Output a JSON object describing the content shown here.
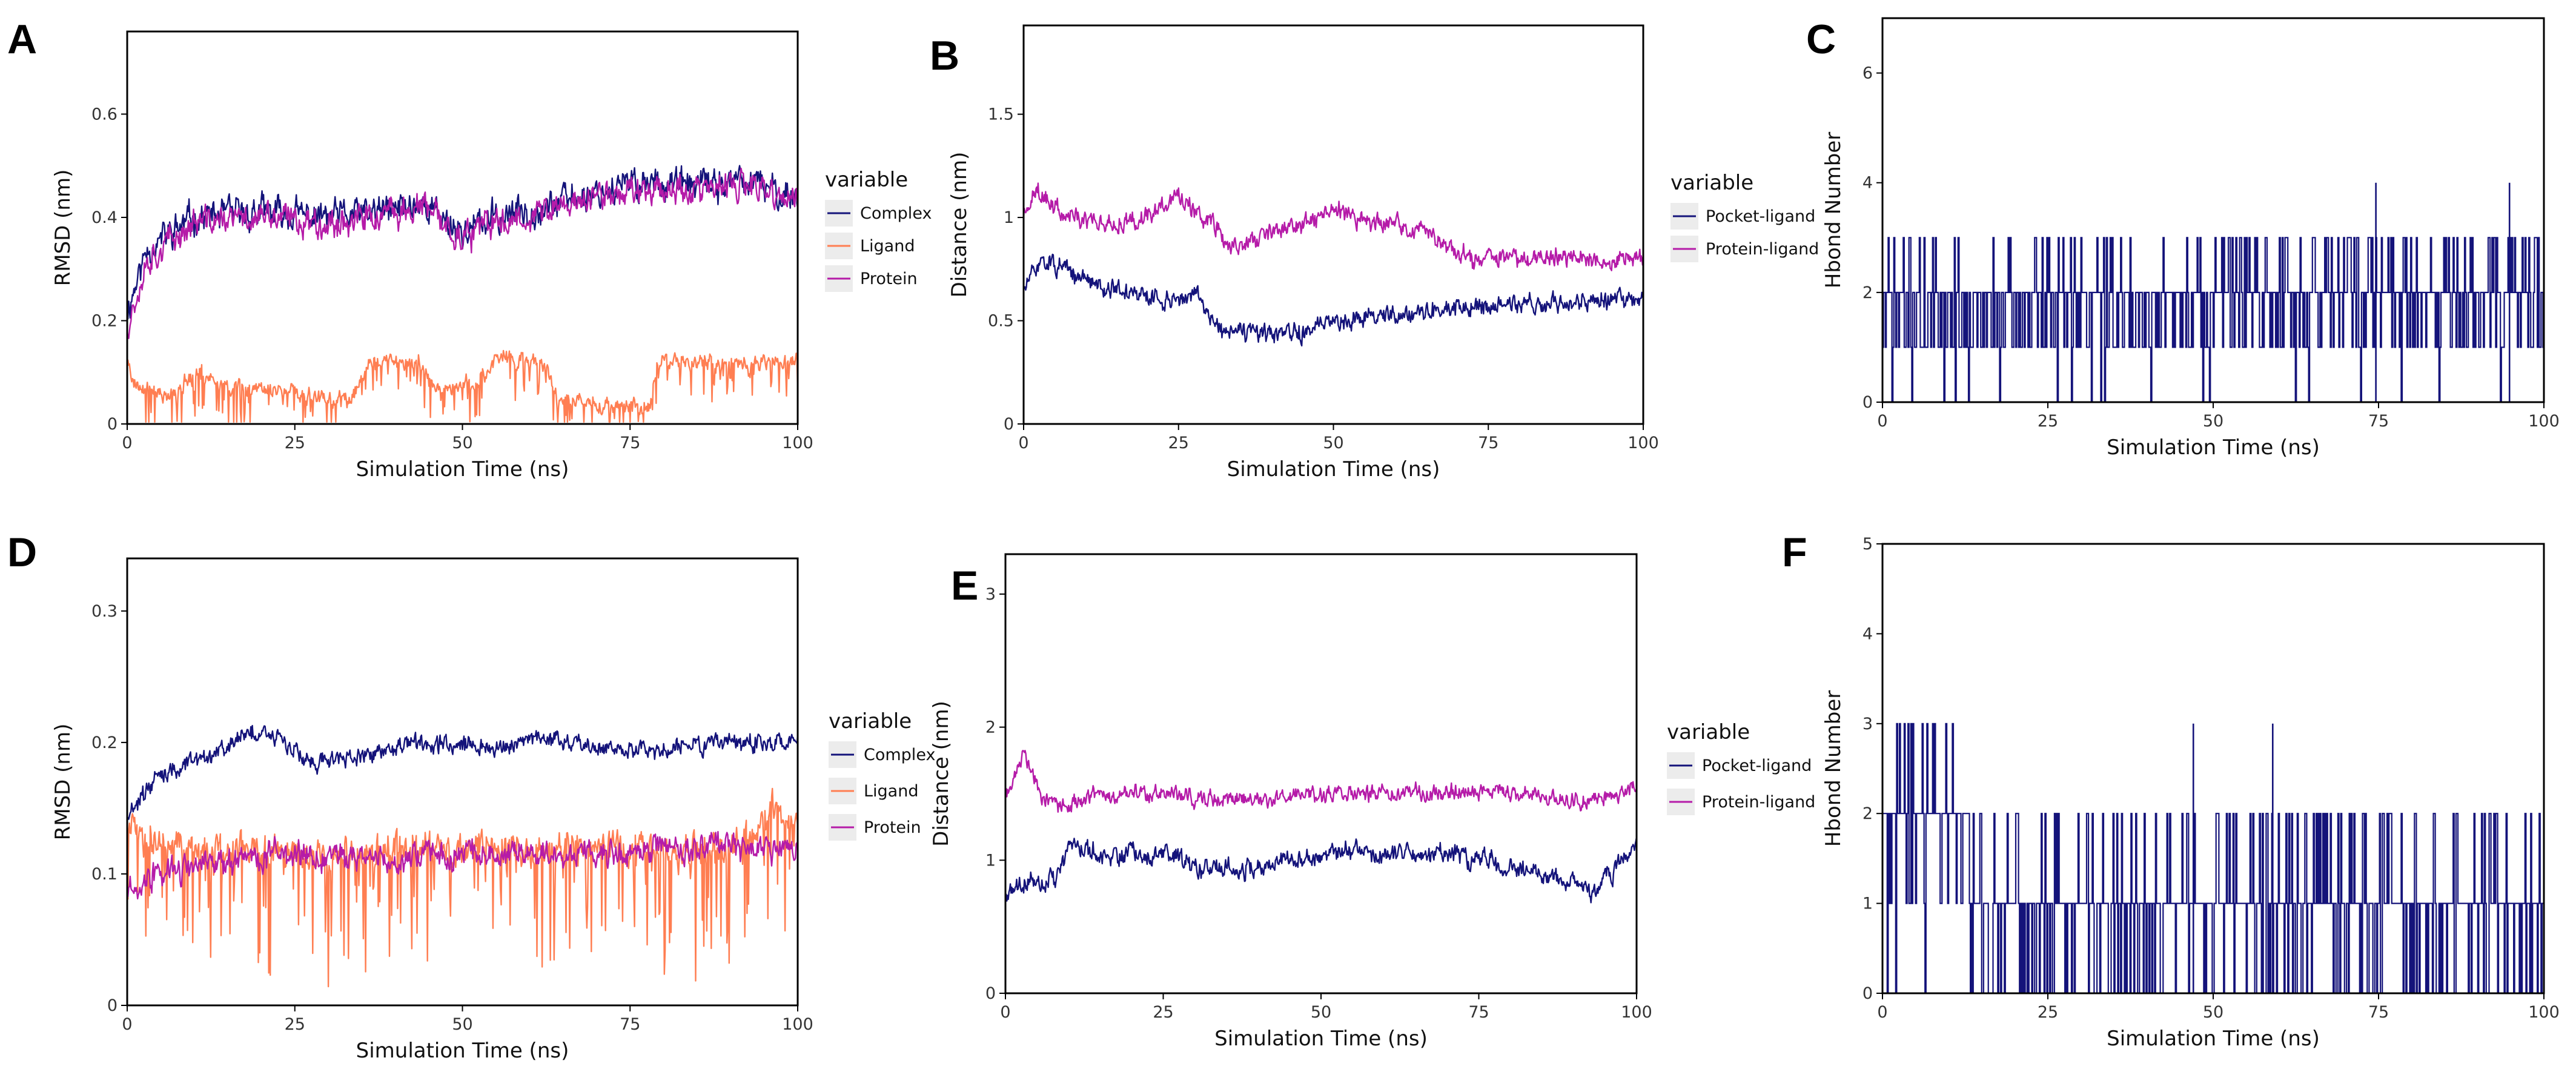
{
  "colors": {
    "complex": "#14137a",
    "ligand": "#ff7e52",
    "protein": "#b51ba8",
    "pocket": "#14137a",
    "protein_ligand": "#b51ba8",
    "hbond": "#14137a",
    "legend_key_bg": "#ececec"
  },
  "chart_data": [
    {
      "id": "A",
      "type": "line",
      "panel_label": "A",
      "xlabel": "Simulation Time (ns)",
      "ylabel": "RMSD (nm)",
      "xlim": [
        0,
        100
      ],
      "ylim": [
        0,
        0.76
      ],
      "xticks": [
        0,
        25,
        50,
        75,
        100
      ],
      "xtick_labels": [
        "0",
        "25",
        "50",
        "75",
        "100"
      ],
      "yticks": [
        0,
        0.2,
        0.4,
        0.6
      ],
      "ytick_labels": [
        "0",
        "0.2",
        "0.4",
        "0.6"
      ],
      "legend_title": "variable",
      "series": [
        {
          "name": "Complex",
          "color_key": "complex",
          "noise": 0.03,
          "spikes": 0,
          "seed": 11,
          "points": [
            [
              0,
              0.22
            ],
            [
              3,
              0.34
            ],
            [
              10,
              0.4
            ],
            [
              20,
              0.41
            ],
            [
              30,
              0.4
            ],
            [
              38,
              0.41
            ],
            [
              44,
              0.43
            ],
            [
              50,
              0.37
            ],
            [
              55,
              0.4
            ],
            [
              62,
              0.42
            ],
            [
              70,
              0.45
            ],
            [
              78,
              0.47
            ],
            [
              85,
              0.46
            ],
            [
              92,
              0.47
            ],
            [
              100,
              0.44
            ]
          ]
        },
        {
          "name": "Ligand",
          "color_key": "ligand",
          "noise": 0.015,
          "spikes": 0.08,
          "seed": 23,
          "points": [
            [
              0,
              0.13
            ],
            [
              1,
              0.08
            ],
            [
              6,
              0.05
            ],
            [
              10,
              0.1
            ],
            [
              16,
              0.07
            ],
            [
              26,
              0.06
            ],
            [
              33,
              0.04
            ],
            [
              36,
              0.12
            ],
            [
              44,
              0.12
            ],
            [
              46,
              0.07
            ],
            [
              52,
              0.08
            ],
            [
              56,
              0.13
            ],
            [
              62,
              0.12
            ],
            [
              64,
              0.05
            ],
            [
              70,
              0.04
            ],
            [
              78,
              0.03
            ],
            [
              79,
              0.12
            ],
            [
              100,
              0.12
            ]
          ]
        },
        {
          "name": "Protein",
          "color_key": "protein",
          "noise": 0.028,
          "spikes": 0,
          "seed": 37,
          "points": [
            [
              0,
              0.19
            ],
            [
              3,
              0.32
            ],
            [
              10,
              0.39
            ],
            [
              20,
              0.4
            ],
            [
              30,
              0.39
            ],
            [
              38,
              0.4
            ],
            [
              44,
              0.42
            ],
            [
              50,
              0.36
            ],
            [
              55,
              0.39
            ],
            [
              62,
              0.41
            ],
            [
              70,
              0.44
            ],
            [
              78,
              0.46
            ],
            [
              85,
              0.45
            ],
            [
              92,
              0.46
            ],
            [
              100,
              0.43
            ]
          ]
        }
      ]
    },
    {
      "id": "B",
      "type": "line",
      "panel_label": "B",
      "xlabel": "Simulation Time (ns)",
      "ylabel": "Distance (nm)",
      "xlim": [
        0,
        100
      ],
      "ylim": [
        0,
        1.93
      ],
      "xticks": [
        0,
        25,
        50,
        75,
        100
      ],
      "xtick_labels": [
        "0",
        "25",
        "50",
        "75",
        "100"
      ],
      "yticks": [
        0,
        0.5,
        1,
        1.5
      ],
      "ytick_labels": [
        "0",
        "0.5",
        "1",
        "1.5"
      ],
      "legend_title": "variable",
      "series": [
        {
          "name": "Pocket-ligand",
          "color_key": "pocket",
          "noise": 0.045,
          "spikes": 0,
          "seed": 51,
          "points": [
            [
              0,
              0.65
            ],
            [
              3,
              0.8
            ],
            [
              8,
              0.72
            ],
            [
              15,
              0.65
            ],
            [
              22,
              0.6
            ],
            [
              28,
              0.62
            ],
            [
              32,
              0.45
            ],
            [
              40,
              0.43
            ],
            [
              45,
              0.44
            ],
            [
              50,
              0.5
            ],
            [
              55,
              0.52
            ],
            [
              62,
              0.54
            ],
            [
              70,
              0.56
            ],
            [
              78,
              0.58
            ],
            [
              85,
              0.58
            ],
            [
              92,
              0.6
            ],
            [
              100,
              0.6
            ]
          ]
        },
        {
          "name": "Protein-ligand",
          "color_key": "protein_ligand",
          "noise": 0.045,
          "spikes": 0,
          "seed": 63,
          "points": [
            [
              0,
              1.0
            ],
            [
              2,
              1.15
            ],
            [
              6,
              1.02
            ],
            [
              14,
              0.97
            ],
            [
              20,
              1.02
            ],
            [
              25,
              1.1
            ],
            [
              30,
              1.0
            ],
            [
              33,
              0.85
            ],
            [
              40,
              0.92
            ],
            [
              46,
              0.97
            ],
            [
              50,
              1.05
            ],
            [
              55,
              0.98
            ],
            [
              62,
              0.96
            ],
            [
              66,
              0.9
            ],
            [
              72,
              0.8
            ],
            [
              78,
              0.8
            ],
            [
              85,
              0.82
            ],
            [
              92,
              0.8
            ],
            [
              100,
              0.8
            ]
          ]
        }
      ]
    },
    {
      "id": "C",
      "type": "step",
      "panel_label": "C",
      "xlabel": "Simulation Time (ns)",
      "ylabel": "Hbond Number",
      "xlim": [
        0,
        100
      ],
      "ylim": [
        0,
        7.0
      ],
      "xticks": [
        0,
        25,
        50,
        75,
        100
      ],
      "xtick_labels": [
        "0",
        "25",
        "50",
        "75",
        "100"
      ],
      "yticks": [
        0,
        2,
        4,
        6
      ],
      "ytick_labels": [
        "0",
        "2",
        "4",
        "6"
      ],
      "series": [
        {
          "name": "Hbond",
          "color_key": "hbond",
          "seed": 71,
          "segments": [
            {
              "from": 0,
              "to": 25,
              "p": [
                0.04,
                0.36,
                0.53,
                0.07,
                0.0
              ]
            },
            {
              "from": 25,
              "to": 50,
              "p": [
                0.03,
                0.33,
                0.52,
                0.12,
                0.0
              ]
            },
            {
              "from": 50,
              "to": 100,
              "p": [
                0.02,
                0.28,
                0.5,
                0.2,
                0.0
              ]
            }
          ],
          "extra_spikes": [
            [
              74.6,
              4
            ],
            [
              94.8,
              4
            ]
          ]
        }
      ]
    },
    {
      "id": "D",
      "type": "line",
      "panel_label": "D",
      "xlabel": "Simulation Time (ns)",
      "ylabel": "RMSD (nm)",
      "xlim": [
        0,
        100
      ],
      "ylim": [
        0,
        0.34
      ],
      "xticks": [
        0,
        25,
        50,
        75,
        100
      ],
      "xtick_labels": [
        "0",
        "25",
        "50",
        "75",
        "100"
      ],
      "yticks": [
        0,
        0.1,
        0.2,
        0.3
      ],
      "ytick_labels": [
        "0",
        "0.1",
        "0.2",
        "0.3"
      ],
      "legend_title": "variable",
      "series": [
        {
          "name": "Complex",
          "color_key": "complex",
          "noise": 0.007,
          "spikes": 0,
          "seed": 81,
          "points": [
            [
              0,
              0.145
            ],
            [
              5,
              0.175
            ],
            [
              12,
              0.19
            ],
            [
              20,
              0.21
            ],
            [
              28,
              0.185
            ],
            [
              35,
              0.19
            ],
            [
              45,
              0.2
            ],
            [
              55,
              0.195
            ],
            [
              62,
              0.205
            ],
            [
              70,
              0.195
            ],
            [
              80,
              0.195
            ],
            [
              90,
              0.2
            ],
            [
              100,
              0.2
            ]
          ]
        },
        {
          "name": "Ligand",
          "color_key": "ligand",
          "noise": 0.012,
          "spikes": 0.09,
          "seed": 93,
          "points": [
            [
              0,
              0.13
            ],
            [
              10,
              0.12
            ],
            [
              20,
              0.12
            ],
            [
              30,
              0.11
            ],
            [
              40,
              0.12
            ],
            [
              50,
              0.12
            ],
            [
              60,
              0.12
            ],
            [
              70,
              0.12
            ],
            [
              80,
              0.12
            ],
            [
              90,
              0.12
            ],
            [
              97,
              0.15
            ],
            [
              100,
              0.13
            ]
          ]
        },
        {
          "name": "Protein",
          "color_key": "protein",
          "noise": 0.01,
          "spikes": 0,
          "seed": 107,
          "points": [
            [
              0,
              0.09
            ],
            [
              5,
              0.1
            ],
            [
              15,
              0.11
            ],
            [
              25,
              0.115
            ],
            [
              35,
              0.11
            ],
            [
              45,
              0.115
            ],
            [
              55,
              0.115
            ],
            [
              65,
              0.115
            ],
            [
              75,
              0.115
            ],
            [
              85,
              0.12
            ],
            [
              95,
              0.12
            ],
            [
              100,
              0.12
            ]
          ]
        }
      ]
    },
    {
      "id": "E",
      "type": "line",
      "panel_label": "E",
      "xlabel": "Simulation Time (ns)",
      "ylabel": "Distance (nm)",
      "xlim": [
        0,
        100
      ],
      "ylim": [
        0,
        3.3
      ],
      "xticks": [
        0,
        25,
        50,
        75,
        100
      ],
      "xtick_labels": [
        "0",
        "25",
        "50",
        "75",
        "100"
      ],
      "yticks": [
        0,
        1,
        2,
        3
      ],
      "ytick_labels": [
        "0",
        "1",
        "2",
        "3"
      ],
      "legend_title": "variable",
      "series": [
        {
          "name": "Pocket-ligand",
          "color_key": "pocket",
          "noise": 0.07,
          "spikes": 0,
          "seed": 121,
          "points": [
            [
              0,
              0.75
            ],
            [
              3,
              0.85
            ],
            [
              8,
              0.85
            ],
            [
              10,
              1.1
            ],
            [
              15,
              1.05
            ],
            [
              25,
              1.05
            ],
            [
              30,
              0.95
            ],
            [
              40,
              0.95
            ],
            [
              50,
              1.05
            ],
            [
              60,
              1.05
            ],
            [
              70,
              1.05
            ],
            [
              80,
              0.95
            ],
            [
              88,
              0.85
            ],
            [
              93,
              0.75
            ],
            [
              100,
              1.1
            ]
          ]
        },
        {
          "name": "Protein-ligand",
          "color_key": "protein_ligand",
          "noise": 0.06,
          "spikes": 0,
          "seed": 133,
          "points": [
            [
              0,
              1.5
            ],
            [
              3,
              1.8
            ],
            [
              6,
              1.45
            ],
            [
              10,
              1.4
            ],
            [
              15,
              1.5
            ],
            [
              25,
              1.5
            ],
            [
              35,
              1.45
            ],
            [
              45,
              1.48
            ],
            [
              55,
              1.5
            ],
            [
              65,
              1.5
            ],
            [
              75,
              1.52
            ],
            [
              85,
              1.48
            ],
            [
              92,
              1.45
            ],
            [
              100,
              1.55
            ]
          ]
        }
      ]
    },
    {
      "id": "F",
      "type": "step",
      "panel_label": "F",
      "xlabel": "Simulation Time (ns)",
      "ylabel": "Hbond Number",
      "xlim": [
        0,
        100
      ],
      "ylim": [
        0,
        5.0
      ],
      "xticks": [
        0,
        25,
        50,
        75,
        100
      ],
      "xtick_labels": [
        "0",
        "25",
        "50",
        "75",
        "100"
      ],
      "yticks": [
        0,
        1,
        2,
        3,
        4,
        5
      ],
      "ytick_labels": [
        "0",
        "1",
        "2",
        "3",
        "4",
        "5"
      ],
      "series": [
        {
          "name": "Hbond",
          "color_key": "hbond",
          "seed": 149,
          "segments": [
            {
              "from": 0,
              "to": 13,
              "p": [
                0.05,
                0.1,
                0.72,
                0.13,
                0.0
              ]
            },
            {
              "from": 13,
              "to": 40,
              "p": [
                0.22,
                0.63,
                0.15,
                0.0,
                0.0
              ]
            },
            {
              "from": 40,
              "to": 100,
              "p": [
                0.22,
                0.64,
                0.14,
                0.0,
                0.0
              ]
            }
          ],
          "extra_spikes": [
            [
              47,
              3
            ],
            [
              59,
              3
            ]
          ]
        }
      ]
    }
  ]
}
